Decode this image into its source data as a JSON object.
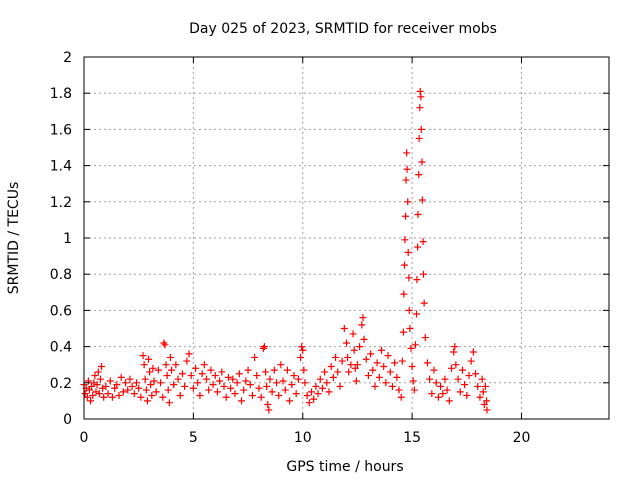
{
  "chart_data": {
    "type": "scatter",
    "title": "Day 025 of 2023, SRMTID for receiver mobs",
    "xlabel": "GPS time / hours",
    "ylabel": "SRMTID / TECUs",
    "xlim": [
      0,
      24
    ],
    "ylim": [
      0,
      2
    ],
    "xticks": [
      0,
      5,
      10,
      15,
      20
    ],
    "yticks": [
      0,
      0.2,
      0.4,
      0.6,
      0.8,
      1,
      1.2,
      1.4,
      1.6,
      1.8,
      2
    ],
    "grid": true,
    "marker": "+",
    "series": [
      {
        "color": "#ff0000",
        "points": [
          [
            0.0,
            0.19
          ],
          [
            0.05,
            0.14
          ],
          [
            0.1,
            0.17
          ],
          [
            0.15,
            0.12
          ],
          [
            0.2,
            0.21
          ],
          [
            0.25,
            0.16
          ],
          [
            0.3,
            0.1
          ],
          [
            0.35,
            0.18
          ],
          [
            0.4,
            0.13
          ],
          [
            0.45,
            0.2
          ],
          [
            0.5,
            0.24
          ],
          [
            0.55,
            0.15
          ],
          [
            0.6,
            0.19
          ],
          [
            0.65,
            0.26
          ],
          [
            0.7,
            0.14
          ],
          [
            0.75,
            0.22
          ],
          [
            0.8,
            0.29
          ],
          [
            0.85,
            0.17
          ],
          [
            0.9,
            0.12
          ],
          [
            1.0,
            0.18
          ],
          [
            1.1,
            0.14
          ],
          [
            1.2,
            0.21
          ],
          [
            1.3,
            0.12
          ],
          [
            1.4,
            0.17
          ],
          [
            1.5,
            0.19
          ],
          [
            1.6,
            0.13
          ],
          [
            1.7,
            0.23
          ],
          [
            1.8,
            0.15
          ],
          [
            1.9,
            0.2
          ],
          [
            2.0,
            0.16
          ],
          [
            2.1,
            0.22
          ],
          [
            2.2,
            0.18
          ],
          [
            2.3,
            0.14
          ],
          [
            2.4,
            0.2
          ],
          [
            2.5,
            0.17
          ],
          [
            2.6,
            0.12
          ],
          [
            2.7,
            0.35
          ],
          [
            2.75,
            0.3
          ],
          [
            2.8,
            0.22
          ],
          [
            2.85,
            0.16
          ],
          [
            2.9,
            0.1
          ],
          [
            2.95,
            0.33
          ],
          [
            3.0,
            0.26
          ],
          [
            3.05,
            0.19
          ],
          [
            3.1,
            0.13
          ],
          [
            3.15,
            0.28
          ],
          [
            3.2,
            0.21
          ],
          [
            3.3,
            0.15
          ],
          [
            3.4,
            0.27
          ],
          [
            3.5,
            0.2
          ],
          [
            3.6,
            0.12
          ],
          [
            3.65,
            0.42
          ],
          [
            3.7,
            0.41
          ],
          [
            3.75,
            0.3
          ],
          [
            3.8,
            0.24
          ],
          [
            3.85,
            0.16
          ],
          [
            3.9,
            0.09
          ],
          [
            3.95,
            0.34
          ],
          [
            4.0,
            0.27
          ],
          [
            4.1,
            0.19
          ],
          [
            4.2,
            0.3
          ],
          [
            4.3,
            0.22
          ],
          [
            4.4,
            0.13
          ],
          [
            4.5,
            0.25
          ],
          [
            4.6,
            0.18
          ],
          [
            4.7,
            0.32
          ],
          [
            4.8,
            0.36
          ],
          [
            4.9,
            0.24
          ],
          [
            5.0,
            0.17
          ],
          [
            5.1,
            0.28
          ],
          [
            5.2,
            0.2
          ],
          [
            5.3,
            0.13
          ],
          [
            5.4,
            0.25
          ],
          [
            5.5,
            0.3
          ],
          [
            5.6,
            0.22
          ],
          [
            5.7,
            0.16
          ],
          [
            5.8,
            0.27
          ],
          [
            5.9,
            0.19
          ],
          [
            6.0,
            0.24
          ],
          [
            6.1,
            0.15
          ],
          [
            6.2,
            0.21
          ],
          [
            6.3,
            0.26
          ],
          [
            6.4,
            0.18
          ],
          [
            6.5,
            0.12
          ],
          [
            6.6,
            0.23
          ],
          [
            6.7,
            0.17
          ],
          [
            6.8,
            0.22
          ],
          [
            6.9,
            0.14
          ],
          [
            7.0,
            0.2
          ],
          [
            7.1,
            0.25
          ],
          [
            7.2,
            0.1
          ],
          [
            7.3,
            0.16
          ],
          [
            7.4,
            0.21
          ],
          [
            7.5,
            0.27
          ],
          [
            7.6,
            0.19
          ],
          [
            7.7,
            0.13
          ],
          [
            7.8,
            0.34
          ],
          [
            7.9,
            0.24
          ],
          [
            8.0,
            0.17
          ],
          [
            8.1,
            0.12
          ],
          [
            8.2,
            0.39
          ],
          [
            8.25,
            0.4
          ],
          [
            8.3,
            0.26
          ],
          [
            8.35,
            0.18
          ],
          [
            8.4,
            0.08
          ],
          [
            8.45,
            0.05
          ],
          [
            8.5,
            0.22
          ],
          [
            8.6,
            0.15
          ],
          [
            8.7,
            0.27
          ],
          [
            8.8,
            0.2
          ],
          [
            8.9,
            0.13
          ],
          [
            9.0,
            0.3
          ],
          [
            9.1,
            0.21
          ],
          [
            9.2,
            0.16
          ],
          [
            9.3,
            0.27
          ],
          [
            9.4,
            0.1
          ],
          [
            9.5,
            0.19
          ],
          [
            9.6,
            0.24
          ],
          [
            9.7,
            0.14
          ],
          [
            9.8,
            0.22
          ],
          [
            9.9,
            0.34
          ],
          [
            9.95,
            0.4
          ],
          [
            10.0,
            0.38
          ],
          [
            10.05,
            0.27
          ],
          [
            10.1,
            0.2
          ],
          [
            10.2,
            0.13
          ],
          [
            10.3,
            0.09
          ],
          [
            10.4,
            0.15
          ],
          [
            10.5,
            0.11
          ],
          [
            10.6,
            0.18
          ],
          [
            10.7,
            0.14
          ],
          [
            10.8,
            0.22
          ],
          [
            10.9,
            0.17
          ],
          [
            11.0,
            0.26
          ],
          [
            11.1,
            0.2
          ],
          [
            11.2,
            0.15
          ],
          [
            11.3,
            0.29
          ],
          [
            11.4,
            0.23
          ],
          [
            11.5,
            0.34
          ],
          [
            11.6,
            0.26
          ],
          [
            11.7,
            0.18
          ],
          [
            11.8,
            0.32
          ],
          [
            11.9,
            0.5
          ],
          [
            12.0,
            0.42
          ],
          [
            12.05,
            0.34
          ],
          [
            12.1,
            0.26
          ],
          [
            12.2,
            0.3
          ],
          [
            12.3,
            0.47
          ],
          [
            12.35,
            0.38
          ],
          [
            12.4,
            0.28
          ],
          [
            12.45,
            0.21
          ],
          [
            12.5,
            0.3
          ],
          [
            12.6,
            0.4
          ],
          [
            12.7,
            0.52
          ],
          [
            12.75,
            0.56
          ],
          [
            12.8,
            0.44
          ],
          [
            12.9,
            0.33
          ],
          [
            13.0,
            0.24
          ],
          [
            13.1,
            0.36
          ],
          [
            13.2,
            0.27
          ],
          [
            13.3,
            0.18
          ],
          [
            13.4,
            0.31
          ],
          [
            13.5,
            0.23
          ],
          [
            13.6,
            0.38
          ],
          [
            13.7,
            0.29
          ],
          [
            13.8,
            0.2
          ],
          [
            13.9,
            0.35
          ],
          [
            14.0,
            0.26
          ],
          [
            14.1,
            0.18
          ],
          [
            14.2,
            0.31
          ],
          [
            14.3,
            0.23
          ],
          [
            14.4,
            0.16
          ],
          [
            14.5,
            0.12
          ],
          [
            14.55,
            0.32
          ],
          [
            14.6,
            0.48
          ],
          [
            14.62,
            0.69
          ],
          [
            14.65,
            0.85
          ],
          [
            14.67,
            0.99
          ],
          [
            14.7,
            1.12
          ],
          [
            14.72,
            1.32
          ],
          [
            14.75,
            1.47
          ],
          [
            14.77,
            1.38
          ],
          [
            14.8,
            1.2
          ],
          [
            14.82,
            0.92
          ],
          [
            14.85,
            0.78
          ],
          [
            14.87,
            0.6
          ],
          [
            14.9,
            0.5
          ],
          [
            14.95,
            0.39
          ],
          [
            15.0,
            0.29
          ],
          [
            15.05,
            0.21
          ],
          [
            15.1,
            0.16
          ],
          [
            15.15,
            0.41
          ],
          [
            15.2,
            0.58
          ],
          [
            15.22,
            0.77
          ],
          [
            15.25,
            0.95
          ],
          [
            15.27,
            1.13
          ],
          [
            15.3,
            1.35
          ],
          [
            15.32,
            1.55
          ],
          [
            15.35,
            1.72
          ],
          [
            15.37,
            1.81
          ],
          [
            15.4,
            1.78
          ],
          [
            15.42,
            1.6
          ],
          [
            15.45,
            1.42
          ],
          [
            15.47,
            1.21
          ],
          [
            15.5,
            0.98
          ],
          [
            15.52,
            0.8
          ],
          [
            15.55,
            0.64
          ],
          [
            15.6,
            0.45
          ],
          [
            15.7,
            0.31
          ],
          [
            15.8,
            0.22
          ],
          [
            15.9,
            0.14
          ],
          [
            16.0,
            0.27
          ],
          [
            16.1,
            0.2
          ],
          [
            16.2,
            0.12
          ],
          [
            16.3,
            0.18
          ],
          [
            16.4,
            0.14
          ],
          [
            16.5,
            0.22
          ],
          [
            16.6,
            0.16
          ],
          [
            16.7,
            0.1
          ],
          [
            16.8,
            0.28
          ],
          [
            16.9,
            0.37
          ],
          [
            16.95,
            0.4
          ],
          [
            17.0,
            0.3
          ],
          [
            17.1,
            0.22
          ],
          [
            17.2,
            0.15
          ],
          [
            17.3,
            0.27
          ],
          [
            17.4,
            0.19
          ],
          [
            17.5,
            0.13
          ],
          [
            17.6,
            0.24
          ],
          [
            17.7,
            0.32
          ],
          [
            17.8,
            0.37
          ],
          [
            17.9,
            0.25
          ],
          [
            18.0,
            0.18
          ],
          [
            18.1,
            0.12
          ],
          [
            18.2,
            0.22
          ],
          [
            18.25,
            0.15
          ],
          [
            18.3,
            0.08
          ],
          [
            18.35,
            0.18
          ],
          [
            18.4,
            0.1
          ],
          [
            18.42,
            0.05
          ]
        ]
      }
    ]
  }
}
